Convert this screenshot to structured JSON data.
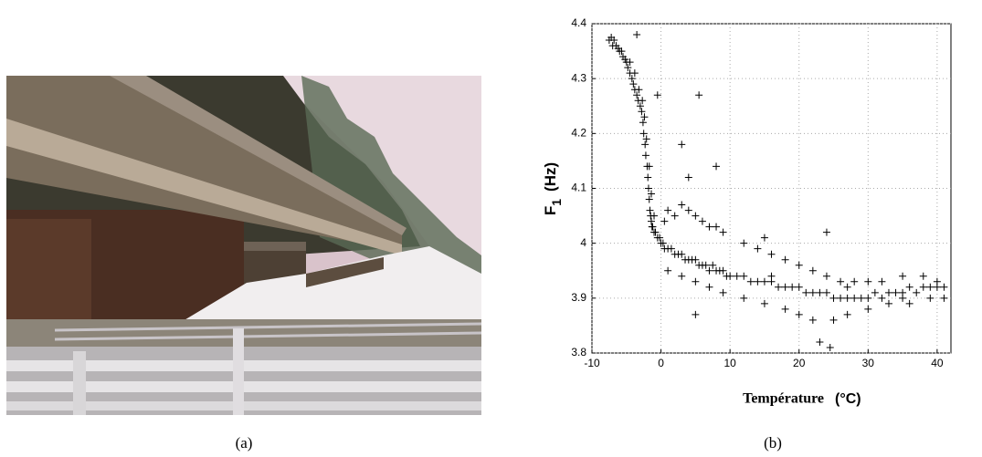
{
  "figure": {
    "captions": [
      "(a)",
      "(b)"
    ]
  },
  "chart_data": {
    "type": "scatter",
    "marker": "+",
    "color": "#000000",
    "ylabel": {
      "main": "F",
      "sub": "1",
      "unit": "(Hz)"
    },
    "xlabel": {
      "main": "Température",
      "unit": "(°C)"
    },
    "xlim": [
      -10,
      42
    ],
    "xticks": [
      -10,
      0,
      10,
      20,
      30,
      40
    ],
    "ylim": [
      3.8,
      4.4
    ],
    "yticks": [
      3.8,
      3.9,
      4,
      4.1,
      4.2,
      4.3,
      4.4
    ],
    "grid": true,
    "x": [
      -7.5,
      -7.2,
      -7,
      -6.8,
      -6.5,
      -6.2,
      -6,
      -5.7,
      -5.5,
      -5.2,
      -5,
      -4.8,
      -4.5,
      -4.2,
      -4,
      -3.8,
      -3.5,
      -3.3,
      -3,
      -2.8,
      -2.6,
      -2.5,
      -2.3,
      -2.2,
      -2,
      -1.9,
      -1.8,
      -1.7,
      -1.6,
      -1.5,
      -1.4,
      -1.3,
      -1.2,
      -1,
      -0.8,
      -0.5,
      -0.2,
      0,
      0.3,
      0.5,
      1,
      1.5,
      2,
      2.5,
      3,
      3.5,
      4,
      4.5,
      5,
      5.5,
      6,
      6.5,
      7,
      7.5,
      8,
      8.5,
      9,
      9.5,
      10,
      11,
      12,
      13,
      14,
      15,
      16,
      17,
      18,
      19,
      20,
      21,
      22,
      23,
      24,
      25,
      26,
      27,
      28,
      29,
      30,
      31,
      32,
      33,
      34,
      35,
      36,
      37,
      38,
      39,
      40,
      41,
      -4.5,
      -3.8,
      -3.2,
      -2.7,
      -2.4,
      -2.1,
      -1.7,
      -1.4,
      -1,
      0.5,
      1,
      2,
      3,
      4,
      5,
      6,
      7,
      8,
      9,
      12,
      14,
      16,
      18,
      20,
      22,
      24,
      26,
      28,
      30,
      32,
      35,
      38,
      40,
      1,
      3,
      5,
      7,
      9,
      12,
      15,
      18,
      20,
      22,
      25,
      27,
      30,
      33,
      36,
      39,
      41,
      16,
      27,
      35,
      -3.5,
      5.5,
      -0.5,
      8,
      5,
      23,
      24.5,
      24,
      15,
      3,
      4
    ],
    "y": [
      4.37,
      4.375,
      4.36,
      4.37,
      4.36,
      4.355,
      4.35,
      4.35,
      4.34,
      4.335,
      4.33,
      4.32,
      4.31,
      4.3,
      4.29,
      4.28,
      4.27,
      4.26,
      4.25,
      4.24,
      4.22,
      4.2,
      4.18,
      4.16,
      4.14,
      4.12,
      4.1,
      4.08,
      4.06,
      4.05,
      4.04,
      4.03,
      4.03,
      4.02,
      4.02,
      4.01,
      4.01,
      4,
      4,
      3.99,
      3.99,
      3.99,
      3.98,
      3.98,
      3.98,
      3.97,
      3.97,
      3.97,
      3.97,
      3.96,
      3.96,
      3.96,
      3.95,
      3.96,
      3.95,
      3.95,
      3.95,
      3.94,
      3.94,
      3.94,
      3.94,
      3.93,
      3.93,
      3.93,
      3.93,
      3.92,
      3.92,
      3.92,
      3.92,
      3.91,
      3.91,
      3.91,
      3.91,
      3.9,
      3.9,
      3.9,
      3.9,
      3.9,
      3.9,
      3.91,
      3.9,
      3.91,
      3.91,
      3.91,
      3.92,
      3.91,
      3.92,
      3.92,
      3.92,
      3.92,
      4.33,
      4.31,
      4.28,
      4.26,
      4.23,
      4.19,
      4.14,
      4.09,
      4.05,
      4.04,
      4.06,
      4.05,
      4.07,
      4.06,
      4.05,
      4.04,
      4.03,
      4.03,
      4.02,
      4,
      3.99,
      3.98,
      3.97,
      3.96,
      3.95,
      3.94,
      3.93,
      3.93,
      3.93,
      3.93,
      3.94,
      3.94,
      3.93,
      3.95,
      3.94,
      3.93,
      3.92,
      3.91,
      3.9,
      3.89,
      3.88,
      3.87,
      3.86,
      3.86,
      3.87,
      3.88,
      3.89,
      3.89,
      3.9,
      3.9,
      3.94,
      3.92,
      3.9,
      4.38,
      4.27,
      4.27,
      4.14,
      3.87,
      3.82,
      3.81,
      4.02,
      4.01,
      4.18,
      4.12
    ]
  }
}
